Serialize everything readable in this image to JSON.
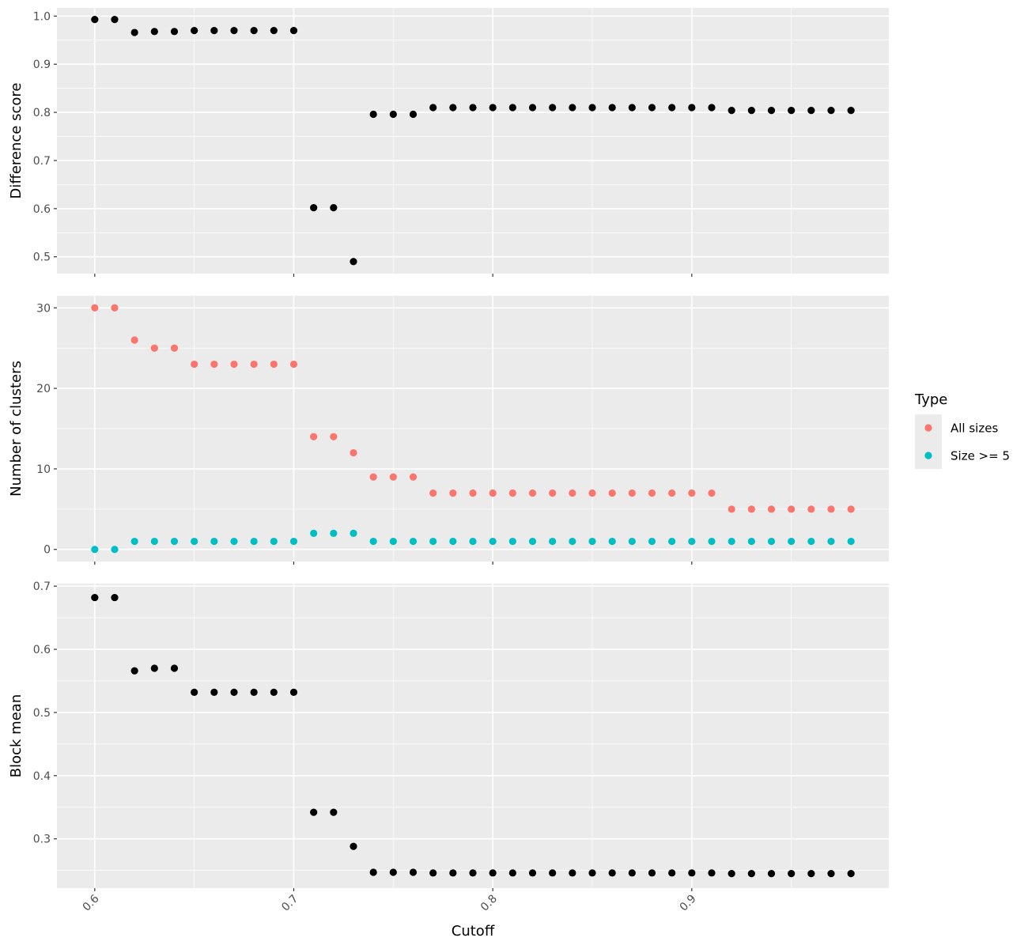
{
  "chart_data": {
    "type": "scatter",
    "x_axis": {
      "label": "Cutoff",
      "range": [
        0.581,
        0.999
      ],
      "ticks": [
        "0.6",
        "0.7",
        "0.8",
        "0.9"
      ],
      "tick_values": [
        0.6,
        0.7,
        0.8,
        0.9
      ]
    },
    "x": [
      0.6,
      0.61,
      0.62,
      0.63,
      0.64,
      0.65,
      0.66,
      0.67,
      0.68,
      0.69,
      0.7,
      0.71,
      0.72,
      0.73,
      0.74,
      0.75,
      0.76,
      0.77,
      0.78,
      0.79,
      0.8,
      0.81,
      0.82,
      0.83,
      0.84,
      0.85,
      0.86,
      0.87,
      0.88,
      0.89,
      0.9,
      0.91,
      0.92,
      0.93,
      0.94,
      0.95,
      0.96,
      0.97,
      0.98
    ],
    "panels": [
      {
        "ylabel": "Difference score",
        "ylim": [
          0.465,
          1.017
        ],
        "yticks": [
          "0.5",
          "0.6",
          "0.7",
          "0.8",
          "0.9",
          "1.0"
        ],
        "ytick_values": [
          0.5,
          0.6,
          0.7,
          0.8,
          0.9,
          1.0
        ],
        "series": [
          {
            "color": "#000000",
            "values": [
              0.993,
              0.993,
              0.966,
              0.968,
              0.968,
              0.97,
              0.97,
              0.97,
              0.97,
              0.97,
              0.97,
              0.602,
              0.602,
              0.49,
              0.796,
              0.796,
              0.796,
              0.81,
              0.81,
              0.81,
              0.81,
              0.81,
              0.81,
              0.81,
              0.81,
              0.81,
              0.81,
              0.81,
              0.81,
              0.81,
              0.81,
              0.81,
              0.804,
              0.804,
              0.804,
              0.804,
              0.804,
              0.804,
              0.804
            ]
          }
        ]
      },
      {
        "ylabel": "Number of clusters",
        "ylim": [
          -1.5,
          31.5
        ],
        "yticks": [
          "0",
          "10",
          "20",
          "30"
        ],
        "ytick_values": [
          0,
          10,
          20,
          30
        ],
        "series": [
          {
            "name": "All sizes",
            "color": "#F8766D",
            "values": [
              30,
              30,
              26,
              25,
              25,
              23,
              23,
              23,
              23,
              23,
              23,
              14,
              14,
              12,
              9,
              9,
              9,
              7,
              7,
              7,
              7,
              7,
              7,
              7,
              7,
              7,
              7,
              7,
              7,
              7,
              7,
              7,
              5,
              5,
              5,
              5,
              5,
              5,
              5
            ]
          },
          {
            "name": "Size >= 5",
            "color": "#00BFC4",
            "values": [
              0,
              0,
              1,
              1,
              1,
              1,
              1,
              1,
              1,
              1,
              1,
              2,
              2,
              2,
              1,
              1,
              1,
              1,
              1,
              1,
              1,
              1,
              1,
              1,
              1,
              1,
              1,
              1,
              1,
              1,
              1,
              1,
              1,
              1,
              1,
              1,
              1,
              1,
              1
            ]
          }
        ]
      },
      {
        "ylabel": "Block mean",
        "ylim": [
          0.222,
          0.704
        ],
        "yticks": [
          "0.3",
          "0.4",
          "0.5",
          "0.6",
          "0.7"
        ],
        "ytick_values": [
          0.3,
          0.4,
          0.5,
          0.6,
          0.7
        ],
        "series": [
          {
            "color": "#000000",
            "values": [
              0.682,
              0.682,
              0.566,
              0.57,
              0.57,
              0.532,
              0.532,
              0.532,
              0.532,
              0.532,
              0.532,
              0.342,
              0.342,
              0.288,
              0.247,
              0.247,
              0.247,
              0.246,
              0.246,
              0.246,
              0.246,
              0.246,
              0.246,
              0.246,
              0.246,
              0.246,
              0.246,
              0.246,
              0.246,
              0.246,
              0.246,
              0.246,
              0.245,
              0.245,
              0.245,
              0.245,
              0.245,
              0.245,
              0.245
            ]
          }
        ]
      }
    ],
    "legend": {
      "title": "Type",
      "position": "right",
      "items": [
        {
          "label": "All sizes",
          "color": "#F8766D"
        },
        {
          "label": "Size >= 5",
          "color": "#00BFC4"
        }
      ]
    },
    "grid": true,
    "panel_background": "#EBEBEB"
  }
}
